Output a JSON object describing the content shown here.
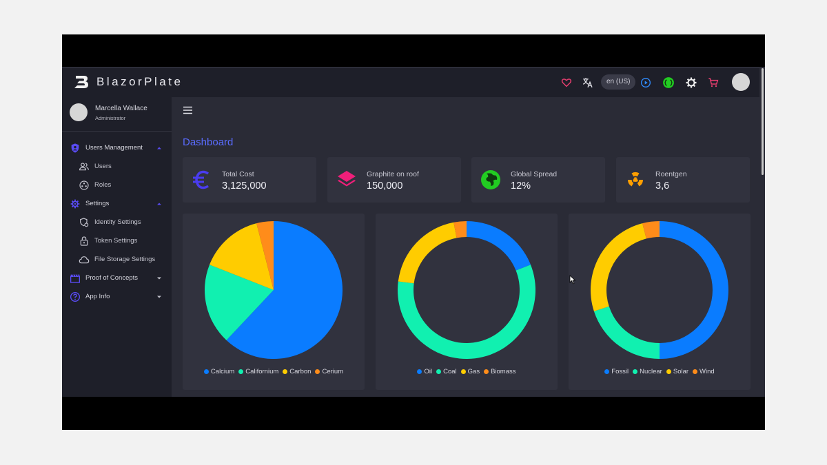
{
  "brand": {
    "name": "BlazorPlate"
  },
  "topbar": {
    "language": "en (US)",
    "icons": [
      "heart-icon",
      "translate-icon",
      "play-icon",
      "code-icon",
      "settings-icon",
      "cart-icon"
    ],
    "colors": {
      "heart": "#e83e6f",
      "play": "#2f8cff",
      "code": "#22cc22",
      "cart": "#e83e6f"
    }
  },
  "user": {
    "name": "Marcella Wallace",
    "role": "Administrator"
  },
  "sidebar": {
    "items": [
      {
        "label": "Users Management",
        "icon": "shield-icon",
        "expanded": true
      },
      {
        "label": "Users",
        "icon": "users-icon",
        "sub": true
      },
      {
        "label": "Roles",
        "icon": "roles-icon",
        "sub": true
      },
      {
        "label": "Settings",
        "icon": "gear-icon",
        "expanded": true
      },
      {
        "label": "Identity Settings",
        "icon": "identity-settings-icon",
        "sub": true
      },
      {
        "label": "Token Settings",
        "icon": "lock-icon",
        "sub": true
      },
      {
        "label": "File Storage Settings",
        "icon": "cloud-icon",
        "sub": true
      },
      {
        "label": "Proof of Concepts",
        "icon": "clapperboard-icon",
        "expanded": false
      },
      {
        "label": "App Info",
        "icon": "help-icon",
        "expanded": false
      }
    ]
  },
  "page": {
    "title": "Dashboard"
  },
  "stats": [
    {
      "label": "Total Cost",
      "value": "3,125,000",
      "icon": "euro-icon",
      "color": "#4a3cf0"
    },
    {
      "label": "Graphite on roof",
      "value": "150,000",
      "icon": "layers-icon",
      "color": "#f01f7a"
    },
    {
      "label": "Global Spread",
      "value": "12%",
      "icon": "globe-icon",
      "color": "#22cc22"
    },
    {
      "label": "Roentgen",
      "value": "3,6",
      "icon": "radiation-icon",
      "color": "#ff9f00"
    }
  ],
  "chart_data": [
    {
      "type": "pie",
      "categories": [
        "Calcium",
        "Californium",
        "Carbon",
        "Cerium"
      ],
      "values": [
        62,
        19,
        15,
        4
      ],
      "colors": [
        "#0a7cff",
        "#11f0b0",
        "#ffcc00",
        "#ff8c1a"
      ]
    },
    {
      "type": "pie",
      "variant": "donut",
      "categories": [
        "Oil",
        "Coal",
        "Gas",
        "Biomass"
      ],
      "values": [
        19,
        58,
        20,
        3
      ],
      "colors": [
        "#0a7cff",
        "#11f0b0",
        "#ffcc00",
        "#ff8c1a"
      ]
    },
    {
      "type": "pie",
      "variant": "donut",
      "categories": [
        "Fossil",
        "Nuclear",
        "Solar",
        "Wind"
      ],
      "values": [
        50,
        20,
        26,
        4
      ],
      "colors": [
        "#0a7cff",
        "#11f0b0",
        "#ffcc00",
        "#ff8c1a"
      ]
    }
  ]
}
